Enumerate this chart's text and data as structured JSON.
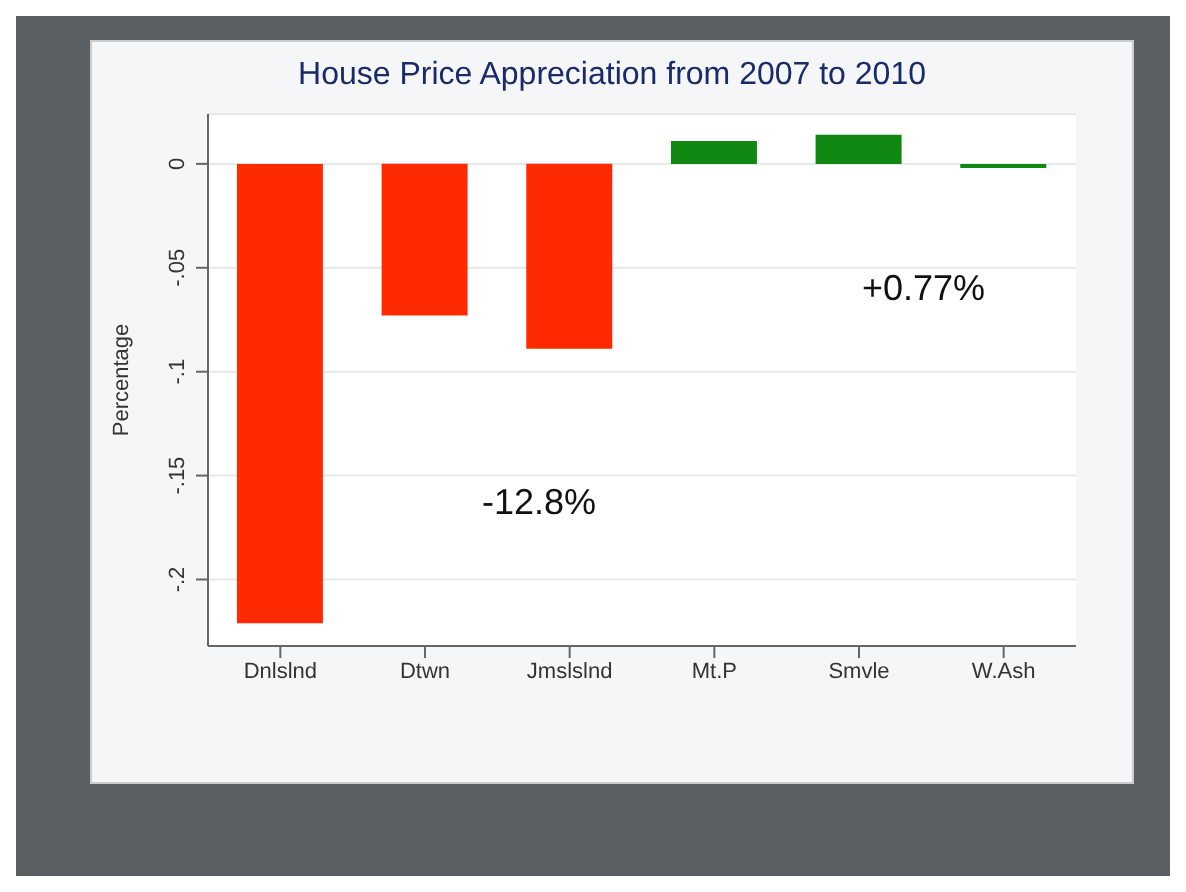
{
  "chart_data": {
    "type": "bar",
    "title": "House Price Appreciation from 2007 to 2010",
    "ylabel": "Percentage",
    "categories": [
      "Dnlslnd",
      "Dtwn",
      "Jmslslnd",
      "Mt.P",
      "Smvle",
      "W.Ash"
    ],
    "values": [
      -0.221,
      -0.073,
      -0.089,
      0.011,
      0.014,
      -0.002
    ],
    "colors": [
      "#ff2a00",
      "#ff2a00",
      "#ff2a00",
      "#118811",
      "#118811",
      "#118811"
    ],
    "ylim": [
      -0.232,
      0.024
    ],
    "yticks": [
      {
        "value": -0.2,
        "label": "-.2"
      },
      {
        "value": -0.15,
        "label": "-.15"
      },
      {
        "value": -0.1,
        "label": "-.1"
      },
      {
        "value": -0.05,
        "label": "-.05"
      },
      {
        "value": 0,
        "label": "0"
      }
    ],
    "grid": "y",
    "annotations": [
      "-12.8%",
      "+0.77%"
    ]
  }
}
